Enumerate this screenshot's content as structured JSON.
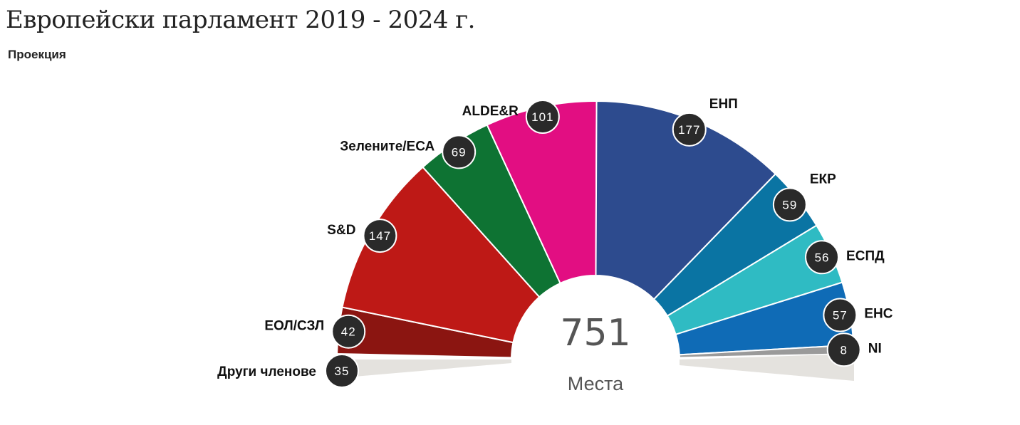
{
  "title": "Европейски парламент 2019 - 2024 г.",
  "subtitle": "Проекция",
  "chart_data": {
    "type": "pie",
    "variant": "hemicycle",
    "total": 751,
    "total_label": "751",
    "unit_label": "Места",
    "series": [
      {
        "name": "Други членове",
        "value": 35,
        "label": "35",
        "color": "#e4e2de"
      },
      {
        "name": "ЕОЛ/СЗЛ",
        "value": 42,
        "label": "42",
        "color": "#8b1511"
      },
      {
        "name": "S&D",
        "value": 147,
        "label": "147",
        "color": "#be1916"
      },
      {
        "name": "Зелените/ЕСА",
        "value": 69,
        "label": "69",
        "color": "#0e7333"
      },
      {
        "name": "ALDE&R",
        "value": 101,
        "label": "101",
        "color": "#e20e82"
      },
      {
        "name": "ЕНП",
        "value": 177,
        "label": "177",
        "color": "#2d4b8e"
      },
      {
        "name": "ЕКР",
        "value": 59,
        "label": "59",
        "color": "#0a74a3"
      },
      {
        "name": "ЕСПД",
        "value": 56,
        "label": "56",
        "color": "#2fbbc3"
      },
      {
        "name": "ЕНС",
        "value": 57,
        "label": "57",
        "color": "#0f6bb6"
      },
      {
        "name": "NI",
        "value": 8,
        "label": "8",
        "color": "#9a9a9a"
      }
    ]
  },
  "colors": {
    "bubble": "#2a2a2a",
    "bubble_border": "#ffffff",
    "text": "#222222"
  }
}
